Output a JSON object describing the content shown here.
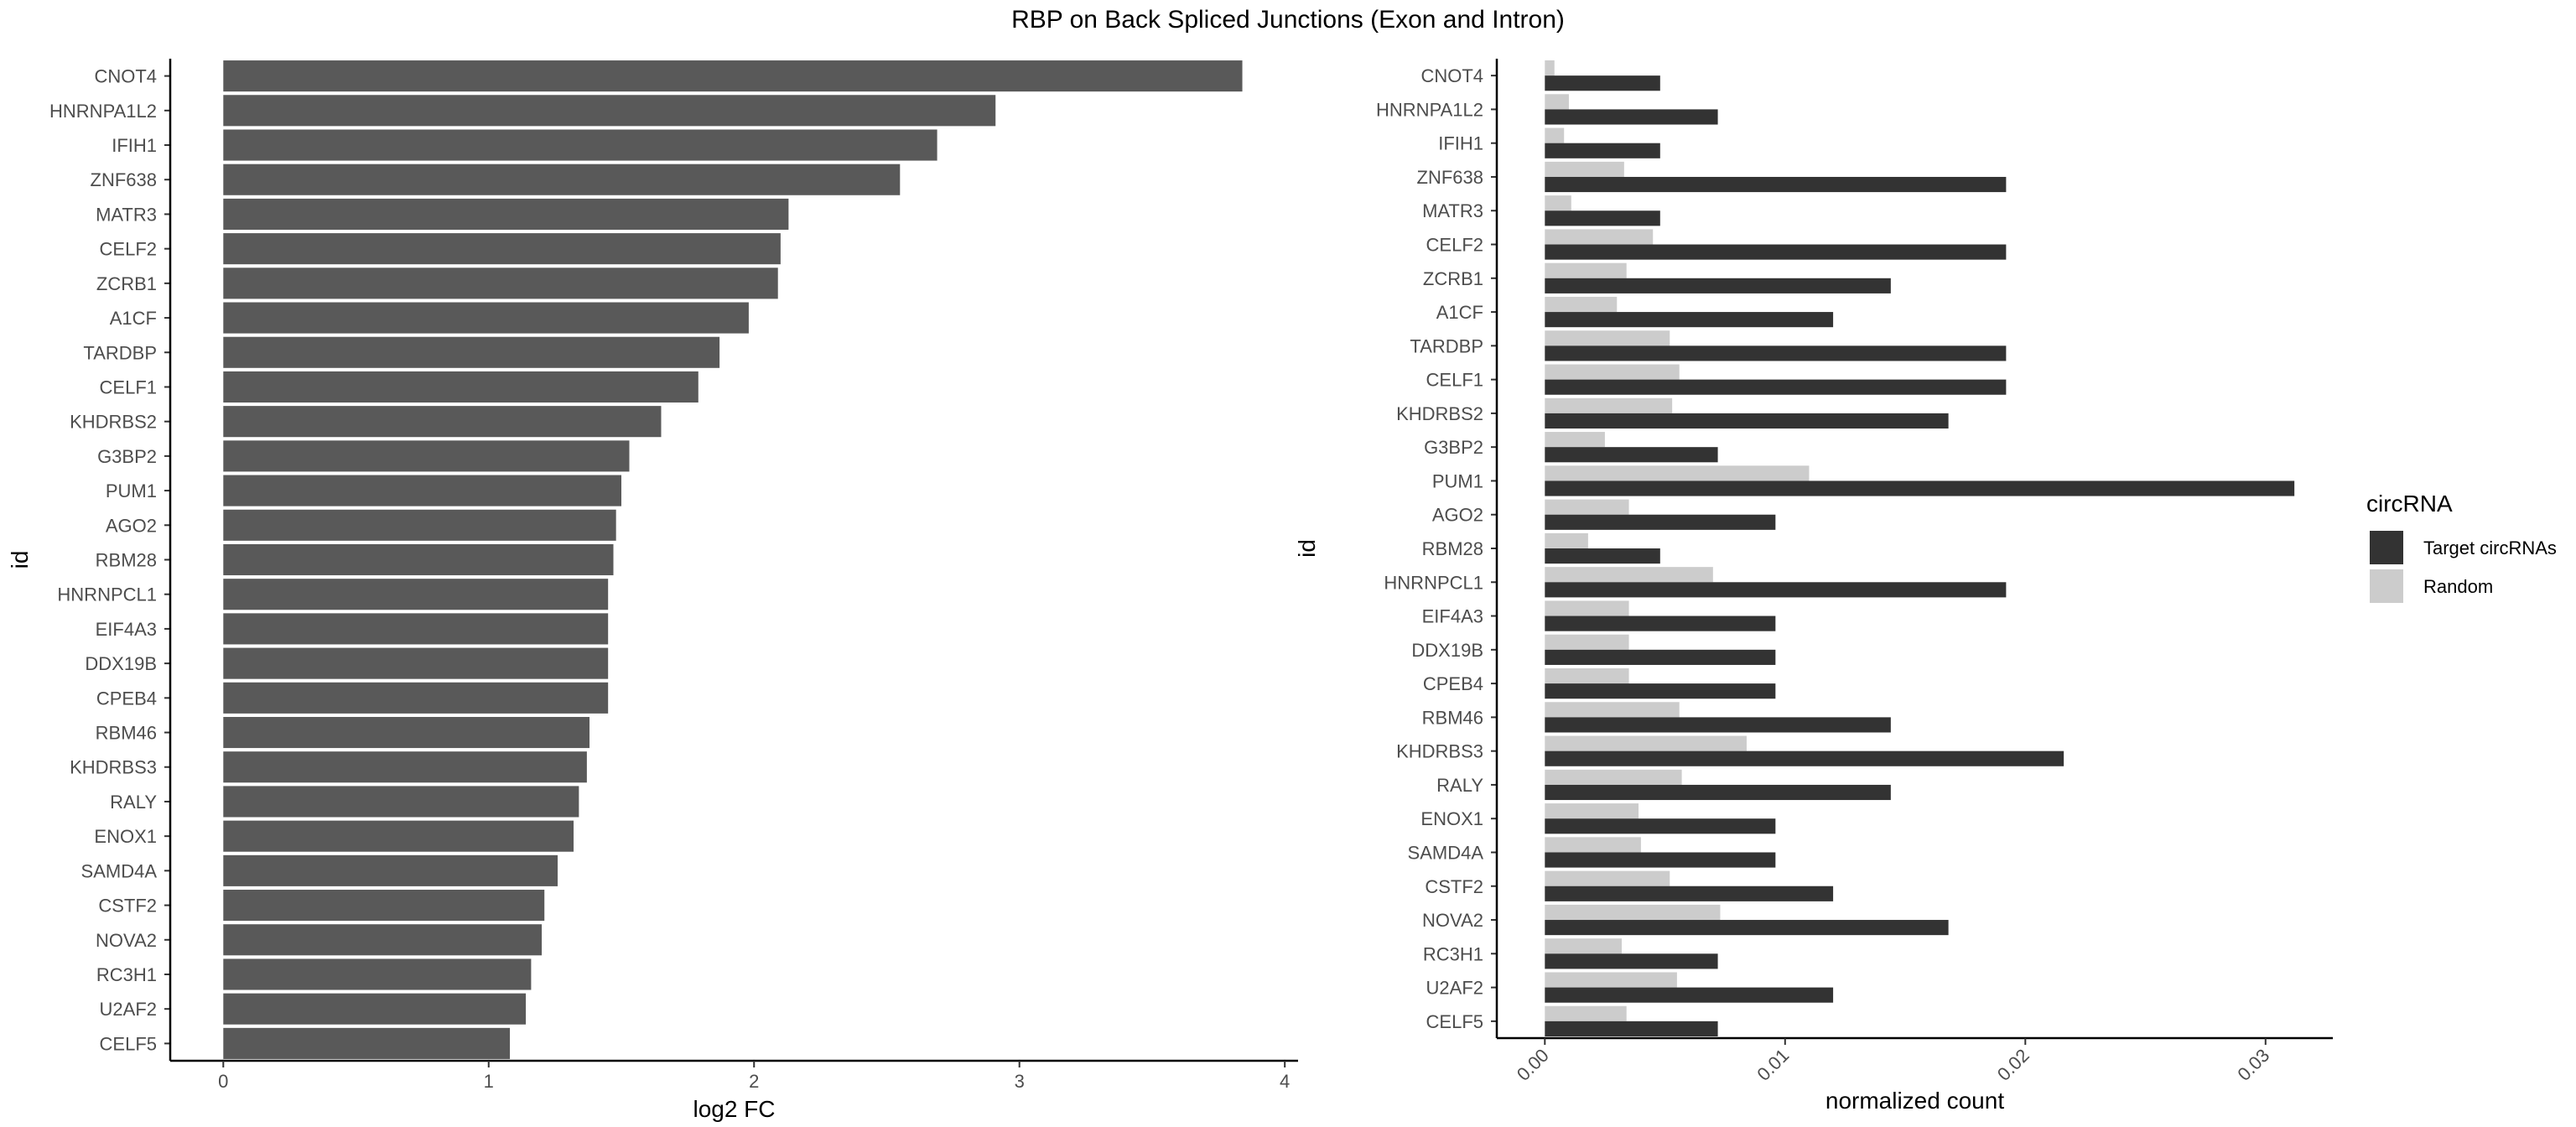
{
  "title": "RBP on Back Spliced Junctions (Exon and Intron)",
  "chart_data": [
    {
      "type": "bar",
      "orientation": "horizontal",
      "categories": [
        "CNOT4",
        "HNRNPA1L2",
        "IFIH1",
        "ZNF638",
        "MATR3",
        "CELF2",
        "ZCRB1",
        "A1CF",
        "TARDBP",
        "CELF1",
        "KHDRBS2",
        "G3BP2",
        "PUM1",
        "AGO2",
        "RBM28",
        "HNRNPCL1",
        "EIF4A3",
        "DDX19B",
        "CPEB4",
        "RBM46",
        "KHDRBS3",
        "RALY",
        "ENOX1",
        "SAMD4A",
        "CSTF2",
        "NOVA2",
        "RC3H1",
        "U2AF2",
        "CELF5"
      ],
      "values": [
        3.84,
        2.91,
        2.69,
        2.55,
        2.13,
        2.1,
        2.09,
        1.98,
        1.87,
        1.79,
        1.65,
        1.53,
        1.5,
        1.48,
        1.47,
        1.45,
        1.45,
        1.45,
        1.45,
        1.38,
        1.37,
        1.34,
        1.32,
        1.26,
        1.21,
        1.2,
        1.16,
        1.14,
        1.08
      ],
      "xlabel": "log2 FC",
      "ylabel": "id",
      "xlim": [
        -0.2,
        4.05
      ],
      "xticks": [
        "0",
        "1",
        "2",
        "3",
        "4"
      ],
      "grid": false,
      "color": "#595959"
    },
    {
      "type": "bar",
      "orientation": "horizontal",
      "categories": [
        "CNOT4",
        "HNRNPA1L2",
        "IFIH1",
        "ZNF638",
        "MATR3",
        "CELF2",
        "ZCRB1",
        "A1CF",
        "TARDBP",
        "CELF1",
        "KHDRBS2",
        "G3BP2",
        "PUM1",
        "AGO2",
        "RBM28",
        "HNRNPCL1",
        "EIF4A3",
        "DDX19B",
        "CPEB4",
        "RBM46",
        "KHDRBS3",
        "RALY",
        "ENOX1",
        "SAMD4A",
        "CSTF2",
        "NOVA2",
        "RC3H1",
        "U2AF2",
        "CELF5"
      ],
      "series": [
        {
          "name": "Target circRNAs",
          "color": "#333333",
          "values": [
            0.0048,
            0.0072,
            0.0048,
            0.0192,
            0.0048,
            0.0192,
            0.0144,
            0.012,
            0.0192,
            0.0192,
            0.0168,
            0.0072,
            0.0312,
            0.0096,
            0.0048,
            0.0192,
            0.0096,
            0.0096,
            0.0096,
            0.0144,
            0.0216,
            0.0144,
            0.0096,
            0.0096,
            0.012,
            0.0168,
            0.0072,
            0.012,
            0.0072
          ]
        },
        {
          "name": "Random",
          "color": "#cccccc",
          "values": [
            0.0004,
            0.001,
            0.0008,
            0.0033,
            0.0011,
            0.0045,
            0.0034,
            0.003,
            0.0052,
            0.0056,
            0.0053,
            0.0025,
            0.011,
            0.0035,
            0.0018,
            0.007,
            0.0035,
            0.0035,
            0.0035,
            0.0056,
            0.0084,
            0.0057,
            0.0039,
            0.004,
            0.0052,
            0.0073,
            0.0032,
            0.0055,
            0.0034
          ]
        }
      ],
      "xlabel": "normalized count",
      "ylabel": "id",
      "xlim": [
        -0.002,
        0.0328
      ],
      "xticks": [
        "0.00",
        "0.01",
        "0.02",
        "0.03"
      ],
      "grid": false,
      "legend": {
        "title": "circRNA",
        "placement": "right"
      }
    }
  ]
}
